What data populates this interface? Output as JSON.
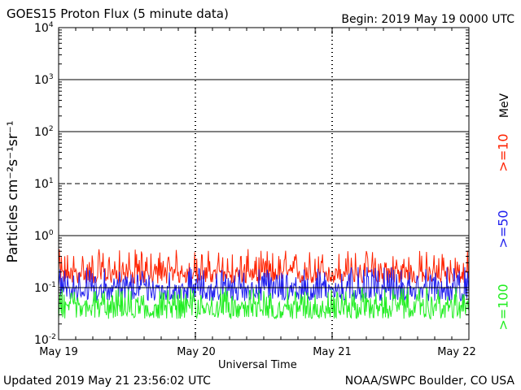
{
  "header": {
    "title": "GOES15 Proton Flux (5 minute data)",
    "begin": "Begin: 2019 May 19 0000 UTC"
  },
  "footer": {
    "updated": "Updated 2019 May 21 23:56:02 UTC",
    "credit": "NOAA/SWPC Boulder, CO USA"
  },
  "legend": {
    "unit": "MeV",
    "items": [
      {
        "label": ">=10",
        "color": "#ff2200"
      },
      {
        "label": ">=50",
        "color": "#2222ee"
      },
      {
        "label": ">=100",
        "color": "#22ee22"
      }
    ]
  },
  "chart_data": {
    "type": "line",
    "title": "GOES15 Proton Flux (5 minute data)",
    "xlabel": "Universal Time",
    "ylabel": "Particles cm⁻²s⁻¹sr⁻¹",
    "y_scale": "log",
    "ylim": [
      0.01,
      10000
    ],
    "y_ticks": [
      {
        "base": "10",
        "exp": "4"
      },
      {
        "base": "10",
        "exp": "3"
      },
      {
        "base": "10",
        "exp": "2"
      },
      {
        "base": "10",
        "exp": "1"
      },
      {
        "base": "10",
        "exp": "0"
      },
      {
        "base": "10",
        "exp": "-1"
      },
      {
        "base": "10",
        "exp": "-2"
      }
    ],
    "x_ticks": [
      "May 19",
      "May 20",
      "May 21",
      "May 22"
    ],
    "x_range_days": [
      0,
      3
    ],
    "series": [
      {
        "name": ">=10",
        "color": "#ff2200",
        "typical": 0.2,
        "range": [
          0.12,
          0.55
        ]
      },
      {
        "name": ">=50",
        "color": "#2222ee",
        "typical": 0.1,
        "range": [
          0.055,
          0.25
        ]
      },
      {
        "name": ">=100",
        "color": "#22ee22",
        "typical": 0.045,
        "range": [
          0.025,
          0.1
        ]
      }
    ]
  }
}
